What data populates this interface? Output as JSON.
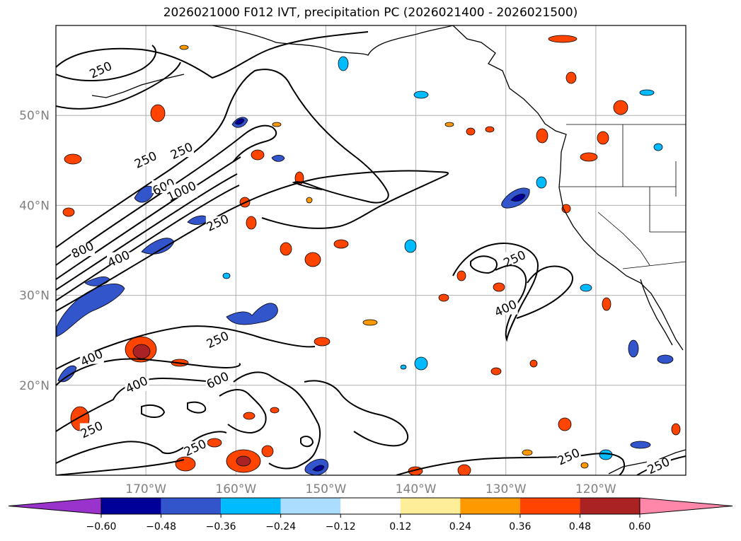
{
  "title": "2026021000 F012 IVT, precipitation PC (2026021400 - 2026021500)",
  "map": {
    "lon_range": [
      -180,
      -110
    ],
    "lat_range": [
      10,
      60
    ],
    "lat_labels": [
      {
        "lat": 50,
        "text": "50°N"
      },
      {
        "lat": 40,
        "text": "40°N"
      },
      {
        "lat": 30,
        "text": "30°N"
      },
      {
        "lat": 20,
        "text": "20°N"
      }
    ],
    "lon_labels": [
      {
        "lon": -170,
        "text": "170°W"
      },
      {
        "lon": -160,
        "text": "160°W"
      },
      {
        "lon": -150,
        "text": "150°W"
      },
      {
        "lon": -140,
        "text": "140°W"
      },
      {
        "lon": -130,
        "text": "130°W"
      },
      {
        "lon": -120,
        "text": "120°W"
      }
    ],
    "gridline_color": "#b0b0b0"
  },
  "ivt_contour_labels": [
    {
      "text": "250",
      "lon": -175,
      "lat": 55
    },
    {
      "text": "250",
      "lon": -170,
      "lat": 45
    },
    {
      "text": "250",
      "lon": -166,
      "lat": 46
    },
    {
      "text": "600",
      "lon": -168,
      "lat": 42
    },
    {
      "text": "1000",
      "lon": -166,
      "lat": 41.5
    },
    {
      "text": "250",
      "lon": -162,
      "lat": 38
    },
    {
      "text": "800",
      "lon": -177,
      "lat": 35
    },
    {
      "text": "400",
      "lon": -173,
      "lat": 34
    },
    {
      "text": "250",
      "lon": -162,
      "lat": 25
    },
    {
      "text": "400",
      "lon": -176,
      "lat": 23
    },
    {
      "text": "400",
      "lon": -171,
      "lat": 20
    },
    {
      "text": "600",
      "lon": -162,
      "lat": 20.5
    },
    {
      "text": "250",
      "lon": -129,
      "lat": 34
    },
    {
      "text": "400",
      "lon": -130,
      "lat": 28.5
    },
    {
      "text": "250",
      "lon": -176,
      "lat": 15
    },
    {
      "text": "250",
      "lon": -164.5,
      "lat": 13
    },
    {
      "text": "250",
      "lon": -123,
      "lat": 12
    },
    {
      "text": "250",
      "lon": -113,
      "lat": 11
    }
  ],
  "colorbar": {
    "ticks": [
      "−0.60",
      "−0.48",
      "−0.36",
      "−0.24",
      "−0.12",
      "0.12",
      "0.24",
      "0.36",
      "0.48",
      "0.60"
    ],
    "colors": [
      "#9933cc",
      "#000099",
      "#3355cc",
      "#00bbff",
      "#aaddff",
      "#ffffff",
      "#ffee99",
      "#ff9900",
      "#ff4400",
      "#aa2222",
      "#ff88aa"
    ]
  },
  "legend_precip_colors": {
    "neg_strong": "#000099",
    "neg_mid": "#3355cc",
    "neg_light": "#00bbff",
    "neg_pale": "#aaddff",
    "pos_pale": "#ffee99",
    "pos_light": "#ff9900",
    "pos_mid": "#ff4400",
    "pos_strong": "#aa2222"
  }
}
